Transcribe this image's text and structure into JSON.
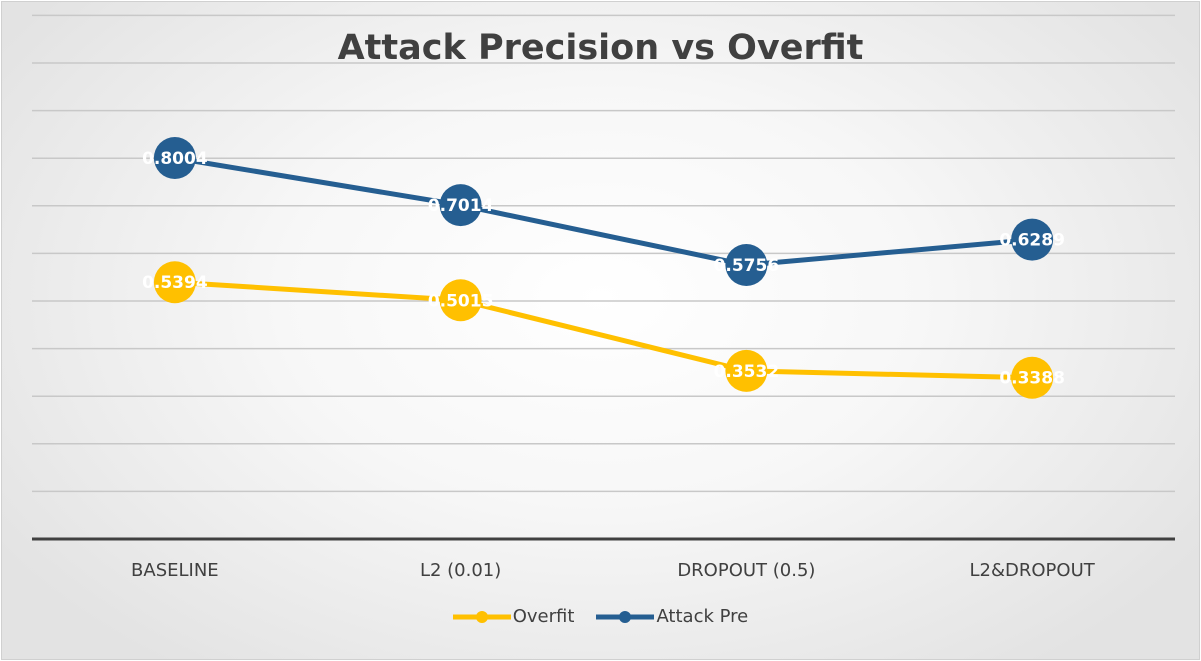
{
  "chart_data": {
    "type": "line",
    "title": "Attack Precision vs Overfit",
    "categories": [
      "BASELINE",
      "L2 (0.01)",
      "DROPOUT (0.5)",
      "L2&DROPOUT"
    ],
    "series": [
      {
        "name": "Overfit",
        "values": [
          0.5394,
          0.5015,
          0.3532,
          0.3388
        ],
        "labels": [
          "0.5394",
          "0.5015",
          "0.3532",
          "0.3388"
        ],
        "color": "#FFC000"
      },
      {
        "name": "Attack Pre",
        "values": [
          0.8004,
          0.7014,
          0.5756,
          0.6289
        ],
        "labels": [
          "0.8004",
          "0.7014",
          "0.5756",
          "0.6289"
        ],
        "color": "#255E91"
      }
    ],
    "ylim": [
      0,
      1.1
    ],
    "y_grid_step": 0.1,
    "grid": true,
    "axis_ticks_shown": false,
    "legend_position": "bottom",
    "xlabel": "",
    "ylabel": ""
  }
}
